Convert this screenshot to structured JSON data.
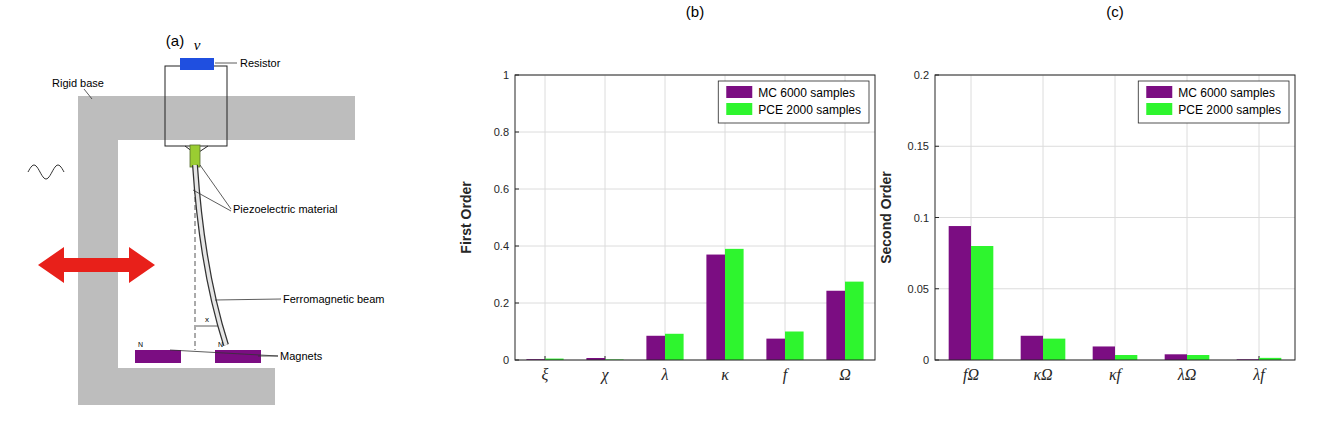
{
  "diagram": {
    "title": "(a)",
    "labels": {
      "voltage": "v",
      "resistor": "Resistor",
      "base": "Rigid base",
      "piezo": "Piezoelectric material",
      "beam": "Ferromagnetic beam",
      "magnets": "Magnets",
      "displacement": "x",
      "pole_left": "N",
      "pole_right": "N"
    }
  },
  "chart_data": [
    {
      "type": "bar",
      "title": "(b)",
      "y_label": "First Order",
      "categories": [
        "ξ",
        "χ",
        "λ",
        "κ",
        "f",
        "Ω"
      ],
      "series": [
        {
          "name": "MC 6000 samples",
          "color": "#7b0d82",
          "values": [
            0.003,
            0.007,
            0.085,
            0.37,
            0.075,
            0.243
          ]
        },
        {
          "name": "PCE 2000 samples",
          "color": "#2ef52e",
          "values": [
            0.005,
            0.002,
            0.092,
            0.39,
            0.1,
            0.275
          ]
        }
      ],
      "ylim": [
        0,
        1
      ],
      "yticks": [
        0,
        0.2,
        0.4,
        0.6,
        0.8,
        1
      ],
      "grid": true,
      "legend": "upper right"
    },
    {
      "type": "bar",
      "title": "(c)",
      "y_label": "Second Order",
      "categories": [
        "fΩ",
        "κΩ",
        "κf",
        "λΩ",
        "λf"
      ],
      "series": [
        {
          "name": "MC 6000 samples",
          "color": "#7b0d82",
          "values": [
            0.094,
            0.017,
            0.0095,
            0.004,
            0.0005
          ]
        },
        {
          "name": "PCE 2000 samples",
          "color": "#2ef52e",
          "values": [
            0.08,
            0.015,
            0.0035,
            0.0035,
            0.0015
          ]
        }
      ],
      "ylim": [
        0,
        0.2
      ],
      "yticks": [
        0,
        0.05,
        0.1,
        0.15,
        0.2
      ],
      "grid": true,
      "legend": "upper right"
    }
  ]
}
